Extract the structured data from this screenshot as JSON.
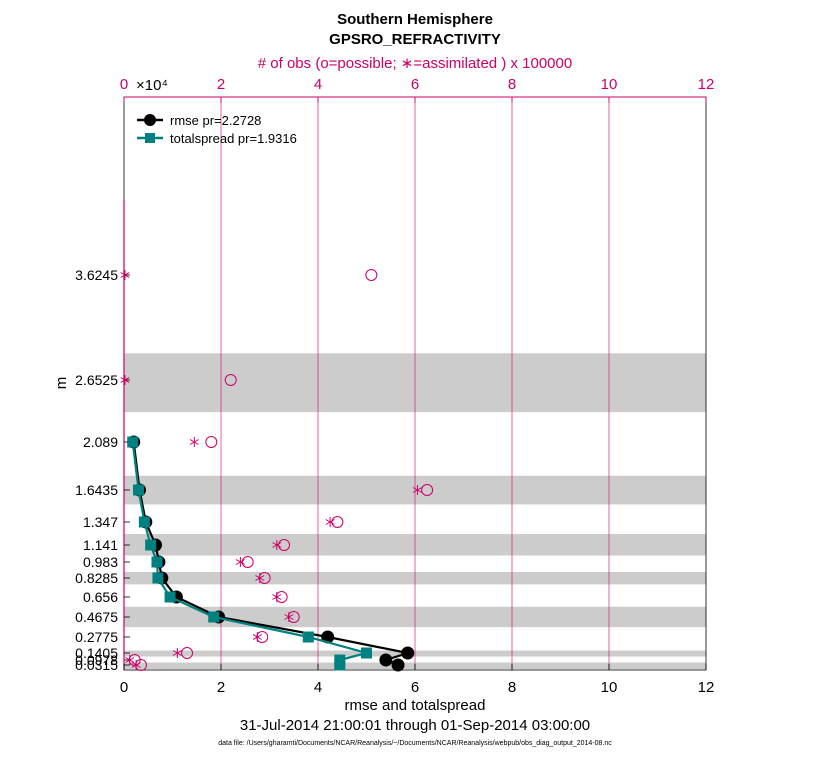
{
  "chart_data": {
    "type": "line",
    "title": "Southern Hemisphere",
    "subtitle": "GPSRO_REFRACTIVITY",
    "top_axis_label": "# of obs (o=possible; ∗=assimilated ) x 100000",
    "top_axis_exponent": "×10⁴",
    "top_ticks": [
      0,
      2,
      4,
      6,
      8,
      10,
      12
    ],
    "xlabel": "rmse and totalspread",
    "ylabel": "m",
    "date_range": "31-Jul-2014 21:00:01 through 01-Sep-2014 03:00:00",
    "footnote": "data file: /Users/gharamti/Documents/NCAR/Reanalysis/~/Documents/NCAR/Reanalysis/webpub/obs_diag_output_2014-08.nc",
    "xlim": [
      0,
      12
    ],
    "x_ticks": [
      0,
      2,
      4,
      6,
      8,
      10,
      12
    ],
    "y_levels": [
      "3.6245",
      "2.6525",
      "2.089",
      "1.6435",
      "1.347",
      "1.141",
      "0.983",
      "0.8285",
      "0.656",
      "0.4675",
      "0.2775",
      "0.1405",
      "0.0978",
      "0.0315"
    ],
    "series": [
      {
        "name": "rmse pr=2.2728",
        "color": "#000000",
        "marker": "circle",
        "points": [
          [
            0.2,
            2.089
          ],
          [
            0.32,
            1.6435
          ],
          [
            0.45,
            1.347
          ],
          [
            0.65,
            1.141
          ],
          [
            0.72,
            0.983
          ],
          [
            0.78,
            0.8285
          ],
          [
            1.08,
            0.656
          ],
          [
            1.95,
            0.4675
          ],
          [
            4.2,
            0.2775
          ],
          [
            5.85,
            0.1405
          ],
          [
            5.4,
            0.0978
          ],
          [
            5.65,
            0.0315
          ]
        ]
      },
      {
        "name": "totalspread pr=1.9316",
        "color": "#008080",
        "marker": "square",
        "points": [
          [
            0.18,
            2.089
          ],
          [
            0.3,
            1.6435
          ],
          [
            0.42,
            1.347
          ],
          [
            0.55,
            1.141
          ],
          [
            0.68,
            0.983
          ],
          [
            0.7,
            0.8285
          ],
          [
            0.95,
            0.656
          ],
          [
            1.85,
            0.4675
          ],
          [
            3.8,
            0.2775
          ],
          [
            5.0,
            0.1405
          ],
          [
            4.45,
            0.0978
          ],
          [
            4.45,
            0.0315
          ]
        ]
      }
    ],
    "obs_possible": [
      [
        5.1,
        3.6245
      ],
      [
        2.2,
        2.6525
      ],
      [
        1.8,
        2.089
      ],
      [
        6.25,
        1.6435
      ],
      [
        4.4,
        1.347
      ],
      [
        3.3,
        1.141
      ],
      [
        2.55,
        0.983
      ],
      [
        2.9,
        0.8285
      ],
      [
        3.25,
        0.656
      ],
      [
        3.5,
        0.4675
      ],
      [
        2.85,
        0.2775
      ],
      [
        1.3,
        0.1405
      ],
      [
        0.22,
        0.0978
      ],
      [
        0.35,
        0.0315
      ]
    ],
    "obs_assimilated": [
      [
        0.02,
        3.6245
      ],
      [
        0.02,
        2.6525
      ],
      [
        1.45,
        2.089
      ],
      [
        6.05,
        1.6435
      ],
      [
        4.25,
        1.347
      ],
      [
        3.15,
        1.141
      ],
      [
        2.4,
        0.983
      ],
      [
        2.8,
        0.8285
      ],
      [
        3.15,
        0.656
      ],
      [
        3.4,
        0.4675
      ],
      [
        2.75,
        0.2775
      ],
      [
        1.1,
        0.1405
      ],
      [
        0.12,
        0.0978
      ],
      [
        0.25,
        0.0315
      ]
    ],
    "shaded_bands": [
      [
        2.36,
        2.9
      ],
      [
        1.51,
        1.776
      ],
      [
        1.043,
        1.239
      ],
      [
        0.7705,
        0.8865
      ],
      [
        0.371,
        0.564
      ],
      [
        0.119,
        0.1615
      ],
      [
        0.006,
        0.0645
      ]
    ],
    "line_color": "#cc0066",
    "band_color": "#cccccc"
  }
}
